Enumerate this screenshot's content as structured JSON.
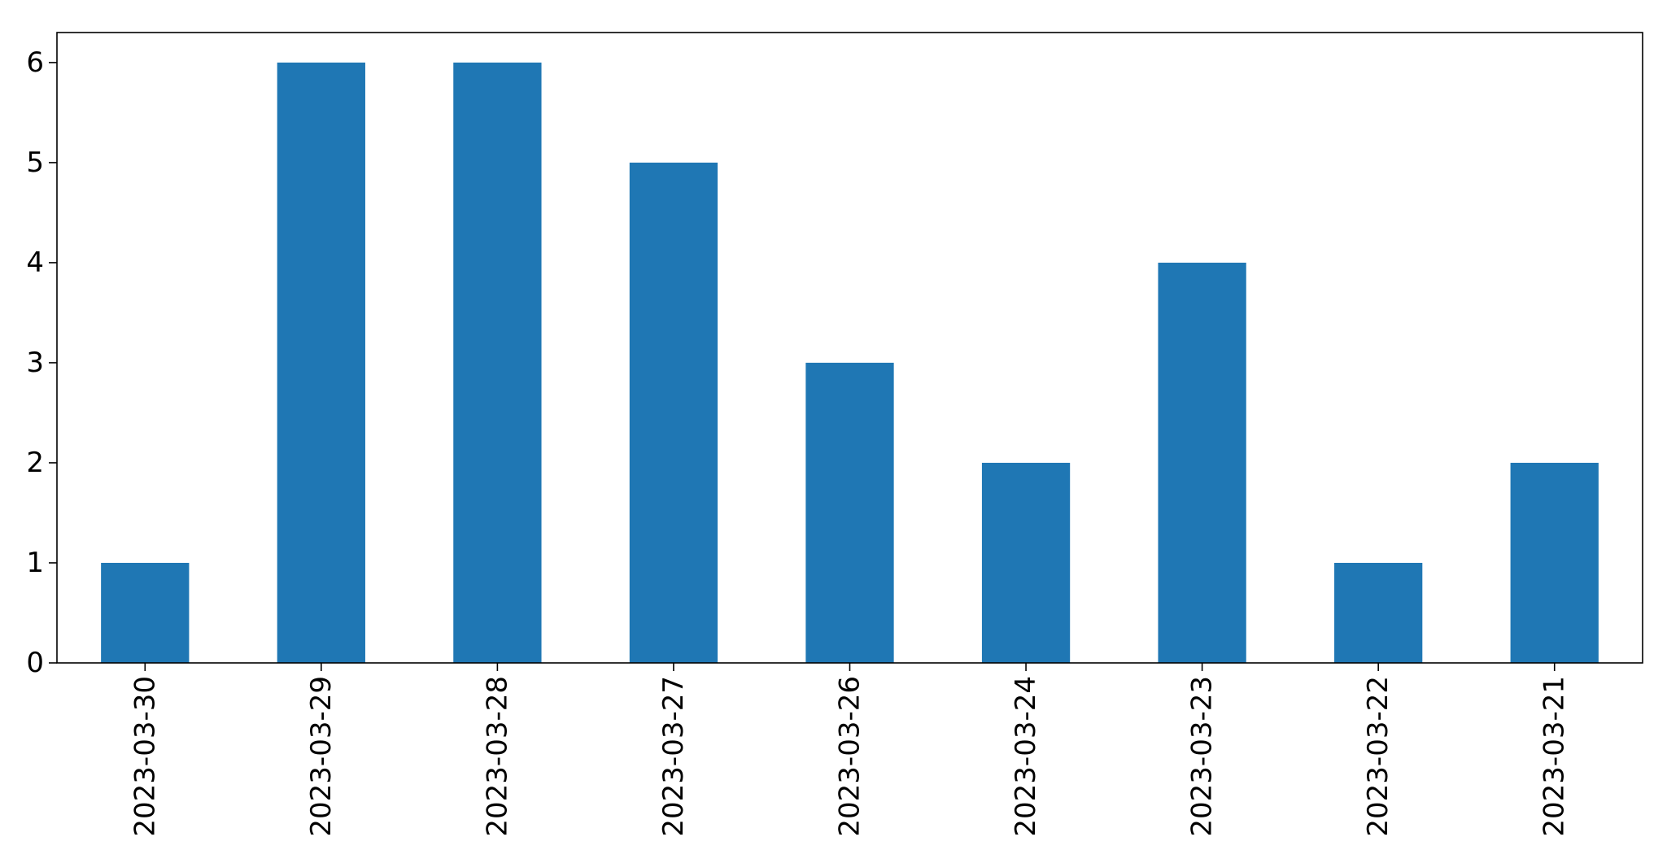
{
  "chart_data": {
    "type": "bar",
    "categories": [
      "2023-03-30",
      "2023-03-29",
      "2023-03-28",
      "2023-03-27",
      "2023-03-26",
      "2023-03-24",
      "2023-03-23",
      "2023-03-22",
      "2023-03-21"
    ],
    "values": [
      1,
      6,
      6,
      5,
      3,
      2,
      4,
      1,
      2
    ],
    "title": "",
    "xlabel": "",
    "ylabel": "",
    "ylim": [
      0,
      6.3
    ],
    "yticks": [
      0,
      1,
      2,
      3,
      4,
      5,
      6
    ],
    "grid": false,
    "legend": "none",
    "bar_color": "#1f77b4",
    "x_tick_rotation": "vertical"
  }
}
